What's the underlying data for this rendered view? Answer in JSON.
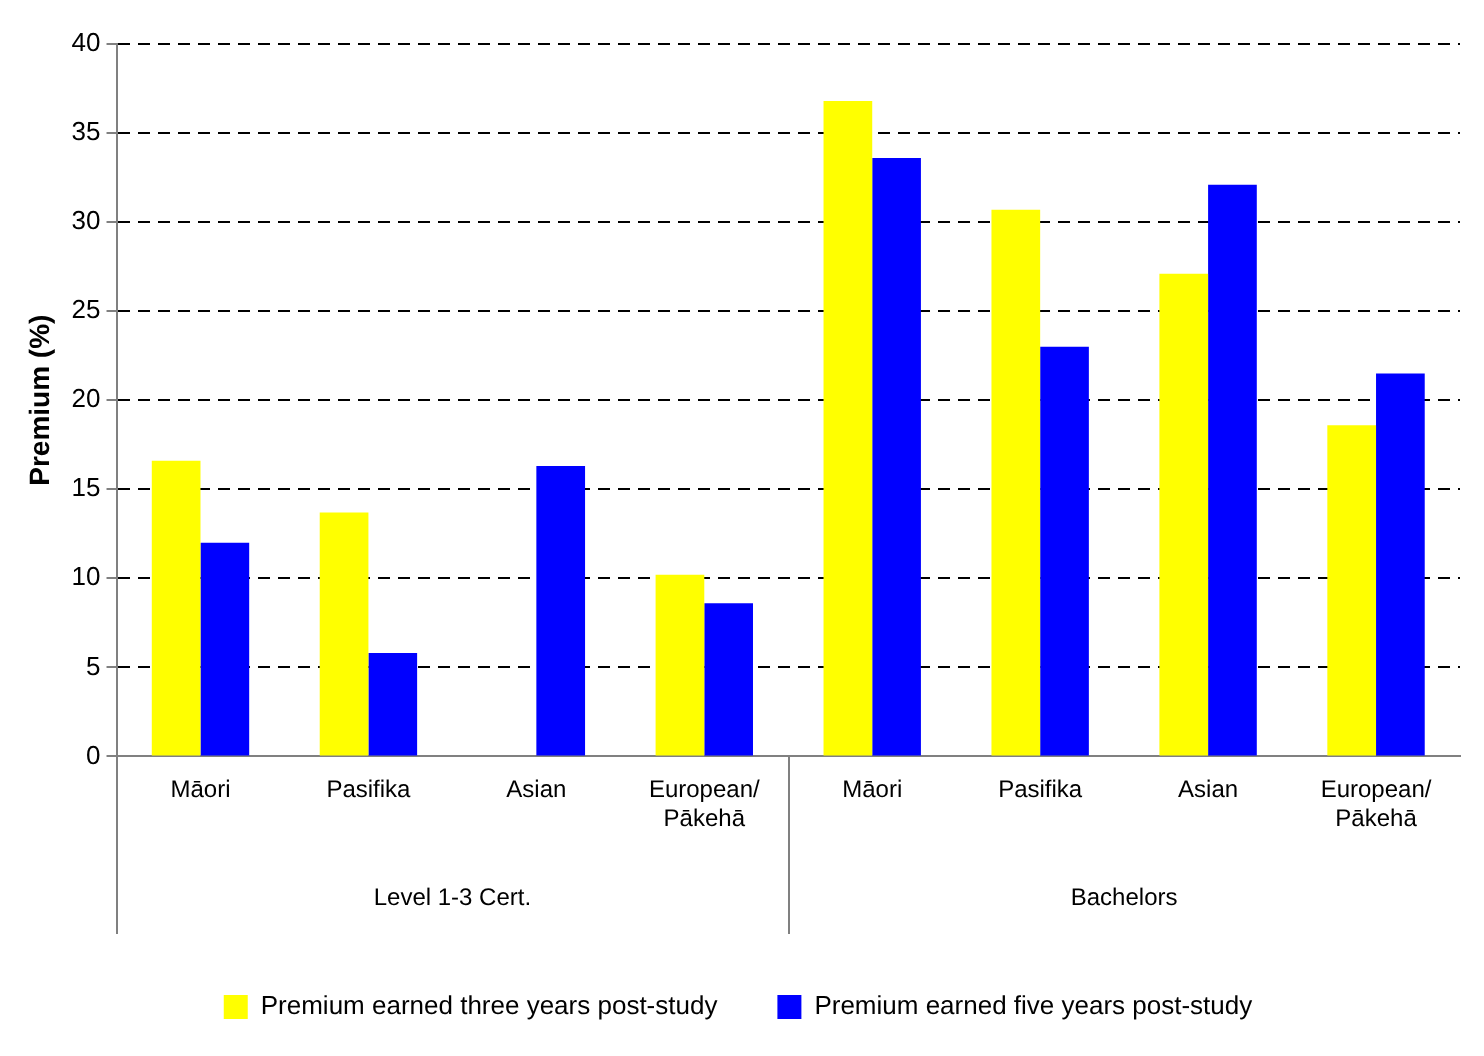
{
  "chart_data": {
    "type": "bar",
    "ylabel": "Premium (%)",
    "categories": [
      "Māori",
      "Pasifika",
      "Asian",
      "European/ Pākehā",
      "Māori",
      "Pasifika",
      "Asian",
      "European/ Pākehā"
    ],
    "series": [
      {
        "name": "Premium earned three years post-study",
        "color": "#ffff00",
        "values": [
          16.6,
          13.7,
          null,
          10.2,
          36.8,
          30.7,
          27.1,
          18.6
        ]
      },
      {
        "name": "Premium earned five years post-study",
        "color": "#0000ff",
        "values": [
          12.0,
          5.8,
          16.3,
          8.6,
          33.6,
          23.0,
          32.1,
          21.5
        ]
      }
    ],
    "annotations": [
      "Level 1-3 Cert.",
      "Bachelors"
    ],
    "ylim": [
      0,
      40
    ],
    "yticks": [
      0,
      5,
      10,
      15,
      20,
      25,
      30,
      35,
      40
    ],
    "grid": "y",
    "legend": "bottom"
  }
}
